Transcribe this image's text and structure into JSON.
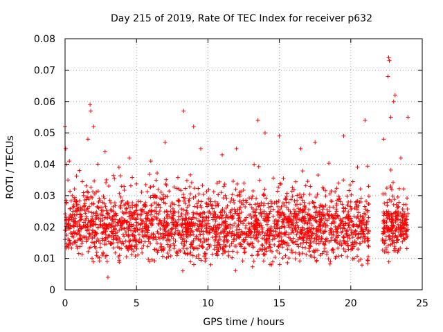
{
  "chart_data": {
    "type": "scatter",
    "title": "Day 215 of 2019, Rate Of TEC Index for receiver p632",
    "xlabel": "GPS time / hours",
    "ylabel": "ROTI / TECUs",
    "xlim": [
      0,
      25
    ],
    "ylim": [
      0,
      0.08
    ],
    "xticks": [
      0,
      5,
      10,
      15,
      20,
      25
    ],
    "xtick_labels": [
      "0",
      "5",
      "10",
      "15",
      "20",
      "25"
    ],
    "yticks": [
      0,
      0.01,
      0.02,
      0.03,
      0.04,
      0.05,
      0.06,
      0.07,
      0.08
    ],
    "ytick_labels": [
      "0",
      "0.01",
      "0.02",
      "0.03",
      "0.04",
      "0.05",
      "0.06",
      "0.07",
      "0.08"
    ],
    "grid": true,
    "marker": "+",
    "marker_color": "#ff0000",
    "data_gap_hours": [
      21.3,
      22.2
    ],
    "series": [
      {
        "name": "ROTI",
        "x": [
          0.0,
          0.05,
          0.1,
          0.2,
          0.3,
          0.5,
          1.0,
          1.6,
          1.75,
          1.8,
          2.0,
          2.3,
          2.8,
          3.0,
          4.5,
          6.0,
          7.0,
          8.3,
          9.0,
          9.5,
          11.0,
          12.0,
          13.5,
          14.0,
          15.0,
          16.5,
          17.5,
          19.5,
          21.0,
          22.3,
          22.6,
          22.65,
          22.7,
          22.8,
          23.0,
          23.1,
          23.5,
          24.0
        ],
        "y": [
          0.052,
          0.045,
          0.04,
          0.035,
          0.041,
          0.03,
          0.038,
          0.048,
          0.059,
          0.057,
          0.052,
          0.04,
          0.044,
          0.004,
          0.042,
          0.041,
          0.047,
          0.057,
          0.052,
          0.045,
          0.043,
          0.045,
          0.054,
          0.05,
          0.049,
          0.045,
          0.047,
          0.049,
          0.054,
          0.048,
          0.068,
          0.074,
          0.073,
          0.055,
          0.06,
          0.062,
          0.042,
          0.055
        ]
      }
    ]
  }
}
